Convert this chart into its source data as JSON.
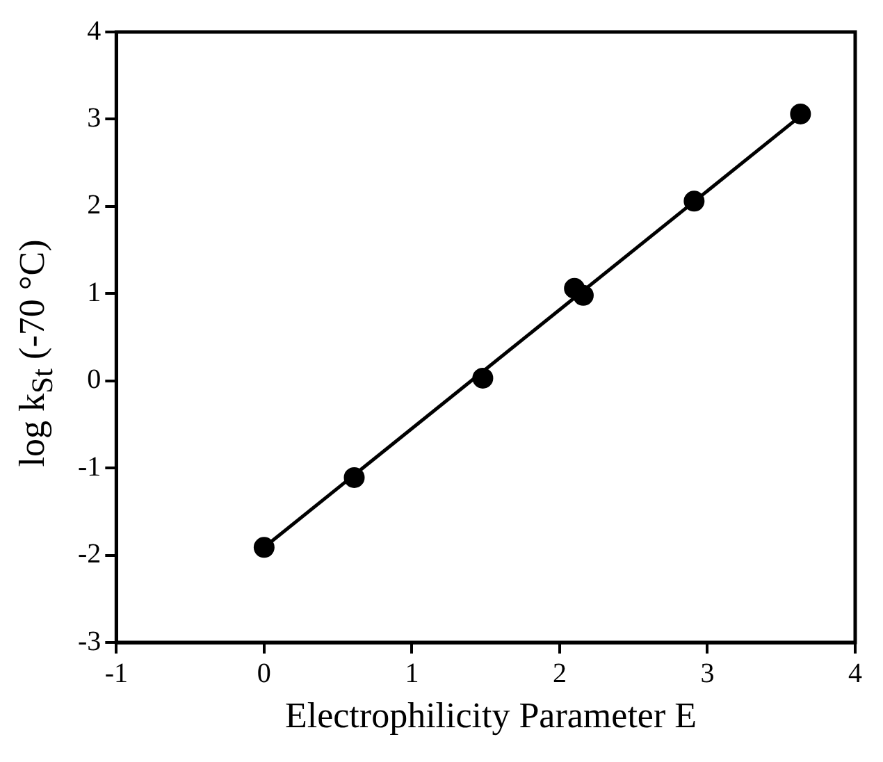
{
  "chart_data": {
    "type": "scatter",
    "xlabel": "Electrophilicity Parameter E",
    "ylabel": "log k$_{St}$ (-70 °C)",
    "xlim": [
      -1,
      4
    ],
    "xticks": [
      -1,
      0,
      1,
      2,
      3,
      4
    ],
    "ylim": [
      -3,
      4
    ],
    "yticks": [
      -3,
      -2,
      -1,
      0,
      1,
      2,
      3,
      4
    ],
    "grid": false,
    "legend": false,
    "marker": "circle",
    "series": [
      {
        "type": "scatter",
        "color": "#000000",
        "x": [
          0,
          0.61,
          1.48,
          2.1,
          2.16,
          2.91,
          3.63
        ],
        "values": [
          -1.91,
          -1.11,
          0.03,
          1.06,
          0.98,
          2.06,
          3.06
        ]
      },
      {
        "type": "line",
        "color": "#000000",
        "marker": "none",
        "line_style": "solid",
        "x": [
          0,
          3.64
        ],
        "values": [
          -1.91,
          3.05
        ]
      }
    ]
  }
}
